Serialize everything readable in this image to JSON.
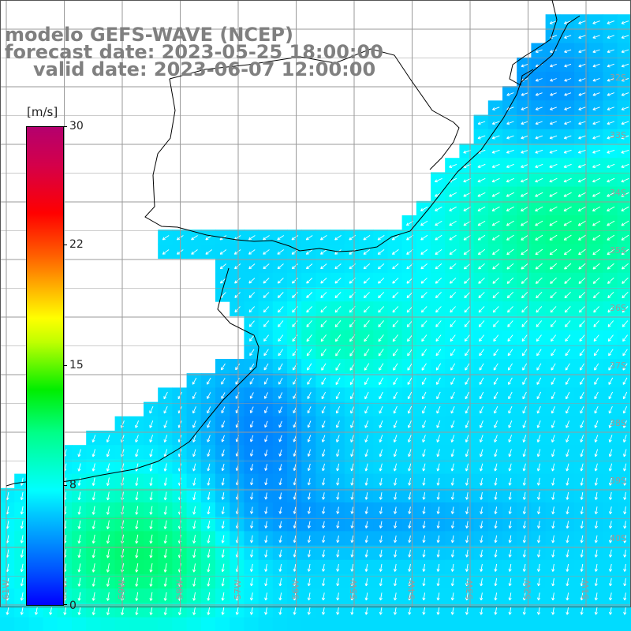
{
  "header": {
    "line1": "modelo GEFS-WAVE (NCEP)",
    "line2": "forecast date: 2023-05-25 18:00:00",
    "line3": "valid date: 2023-06-07 12:00:00"
  },
  "colorbar": {
    "unit": "[m/s]",
    "ticks": [
      {
        "value": 30,
        "label": "30"
      },
      {
        "value": 22,
        "label": "22"
      },
      {
        "value": 15,
        "label": "15"
      },
      {
        "value": 8,
        "label": "8"
      },
      {
        "value": 0,
        "label": "0"
      }
    ],
    "colors": [
      "#0000ff",
      "#0050ff",
      "#0096ff",
      "#00c8ff",
      "#00ffff",
      "#00ff88",
      "#00ee00",
      "#c0ff00",
      "#ffff00",
      "#ffaa00",
      "#ff6000",
      "#ff0000",
      "#d4004a",
      "#b4006e"
    ]
  },
  "map": {
    "latitude_labels": [
      "32S",
      "33S",
      "34S",
      "35S",
      "36S",
      "37S",
      "38S",
      "39S",
      "40S"
    ],
    "longitude_labels": [
      "61W",
      "60W",
      "59W",
      "58W",
      "57W",
      "56W",
      "55W",
      "54W",
      "53W",
      "52W",
      "51W",
      "50W"
    ],
    "lon_range": [
      -61.3,
      -50.3
    ],
    "lat_range": [
      -41.2,
      -30.5
    ],
    "grid_spacing_deg": 1,
    "wind_direction": "from the north-east in the north, from the north in the south",
    "colors": {
      "land": "#ffffff",
      "grid": "#9a9a9a",
      "coast": "#000000",
      "arrow": "#ffffff",
      "tick_label": "#9a9a9a"
    }
  }
}
